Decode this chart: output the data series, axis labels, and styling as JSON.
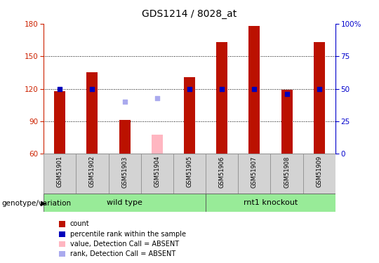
{
  "title": "GDS1214 / 8028_at",
  "samples": [
    "GSM51901",
    "GSM51902",
    "GSM51903",
    "GSM51904",
    "GSM51905",
    "GSM51906",
    "GSM51907",
    "GSM51908",
    "GSM51909"
  ],
  "count_values": [
    118,
    135,
    91,
    null,
    131,
    163,
    178,
    119,
    163
  ],
  "count_absent_values": [
    null,
    null,
    null,
    78,
    null,
    null,
    null,
    null,
    null
  ],
  "rank_values": [
    50,
    50,
    null,
    null,
    50,
    50,
    50,
    46,
    50
  ],
  "rank_absent_values": [
    null,
    null,
    40,
    43,
    null,
    null,
    null,
    null,
    null
  ],
  "ylim_left": [
    60,
    180
  ],
  "ylim_right": [
    0,
    100
  ],
  "yticks_left": [
    60,
    90,
    120,
    150,
    180
  ],
  "yticks_right": [
    0,
    25,
    50,
    75,
    100
  ],
  "ytick_labels_right": [
    "0",
    "25",
    "50",
    "75",
    "100%"
  ],
  "group_defs": [
    {
      "start": 0,
      "end": 4,
      "label": "wild type",
      "color": "#98eb98"
    },
    {
      "start": 5,
      "end": 8,
      "label": "rnt1 knockout",
      "color": "#98eb98"
    }
  ],
  "bar_color_present": "#bb1100",
  "bar_color_absent": "#ffb6c1",
  "rank_color_present": "#0000bb",
  "rank_color_absent": "#aaaaee",
  "bar_width": 0.35,
  "rank_marker_size": 18,
  "left_axis_color": "#cc2200",
  "right_axis_color": "#0000cc",
  "sample_box_color": "#d3d3d3",
  "legend_items": [
    {
      "label": "count",
      "color": "#bb1100"
    },
    {
      "label": "percentile rank within the sample",
      "color": "#0000bb"
    },
    {
      "label": "value, Detection Call = ABSENT",
      "color": "#ffb6c1"
    },
    {
      "label": "rank, Detection Call = ABSENT",
      "color": "#aaaaee"
    }
  ],
  "genotype_label": "genotype/variation",
  "title_fontsize": 10,
  "tick_fontsize": 7.5,
  "sample_fontsize": 6.0,
  "group_fontsize": 8.0,
  "legend_fontsize": 7.0,
  "genotype_fontsize": 7.5
}
